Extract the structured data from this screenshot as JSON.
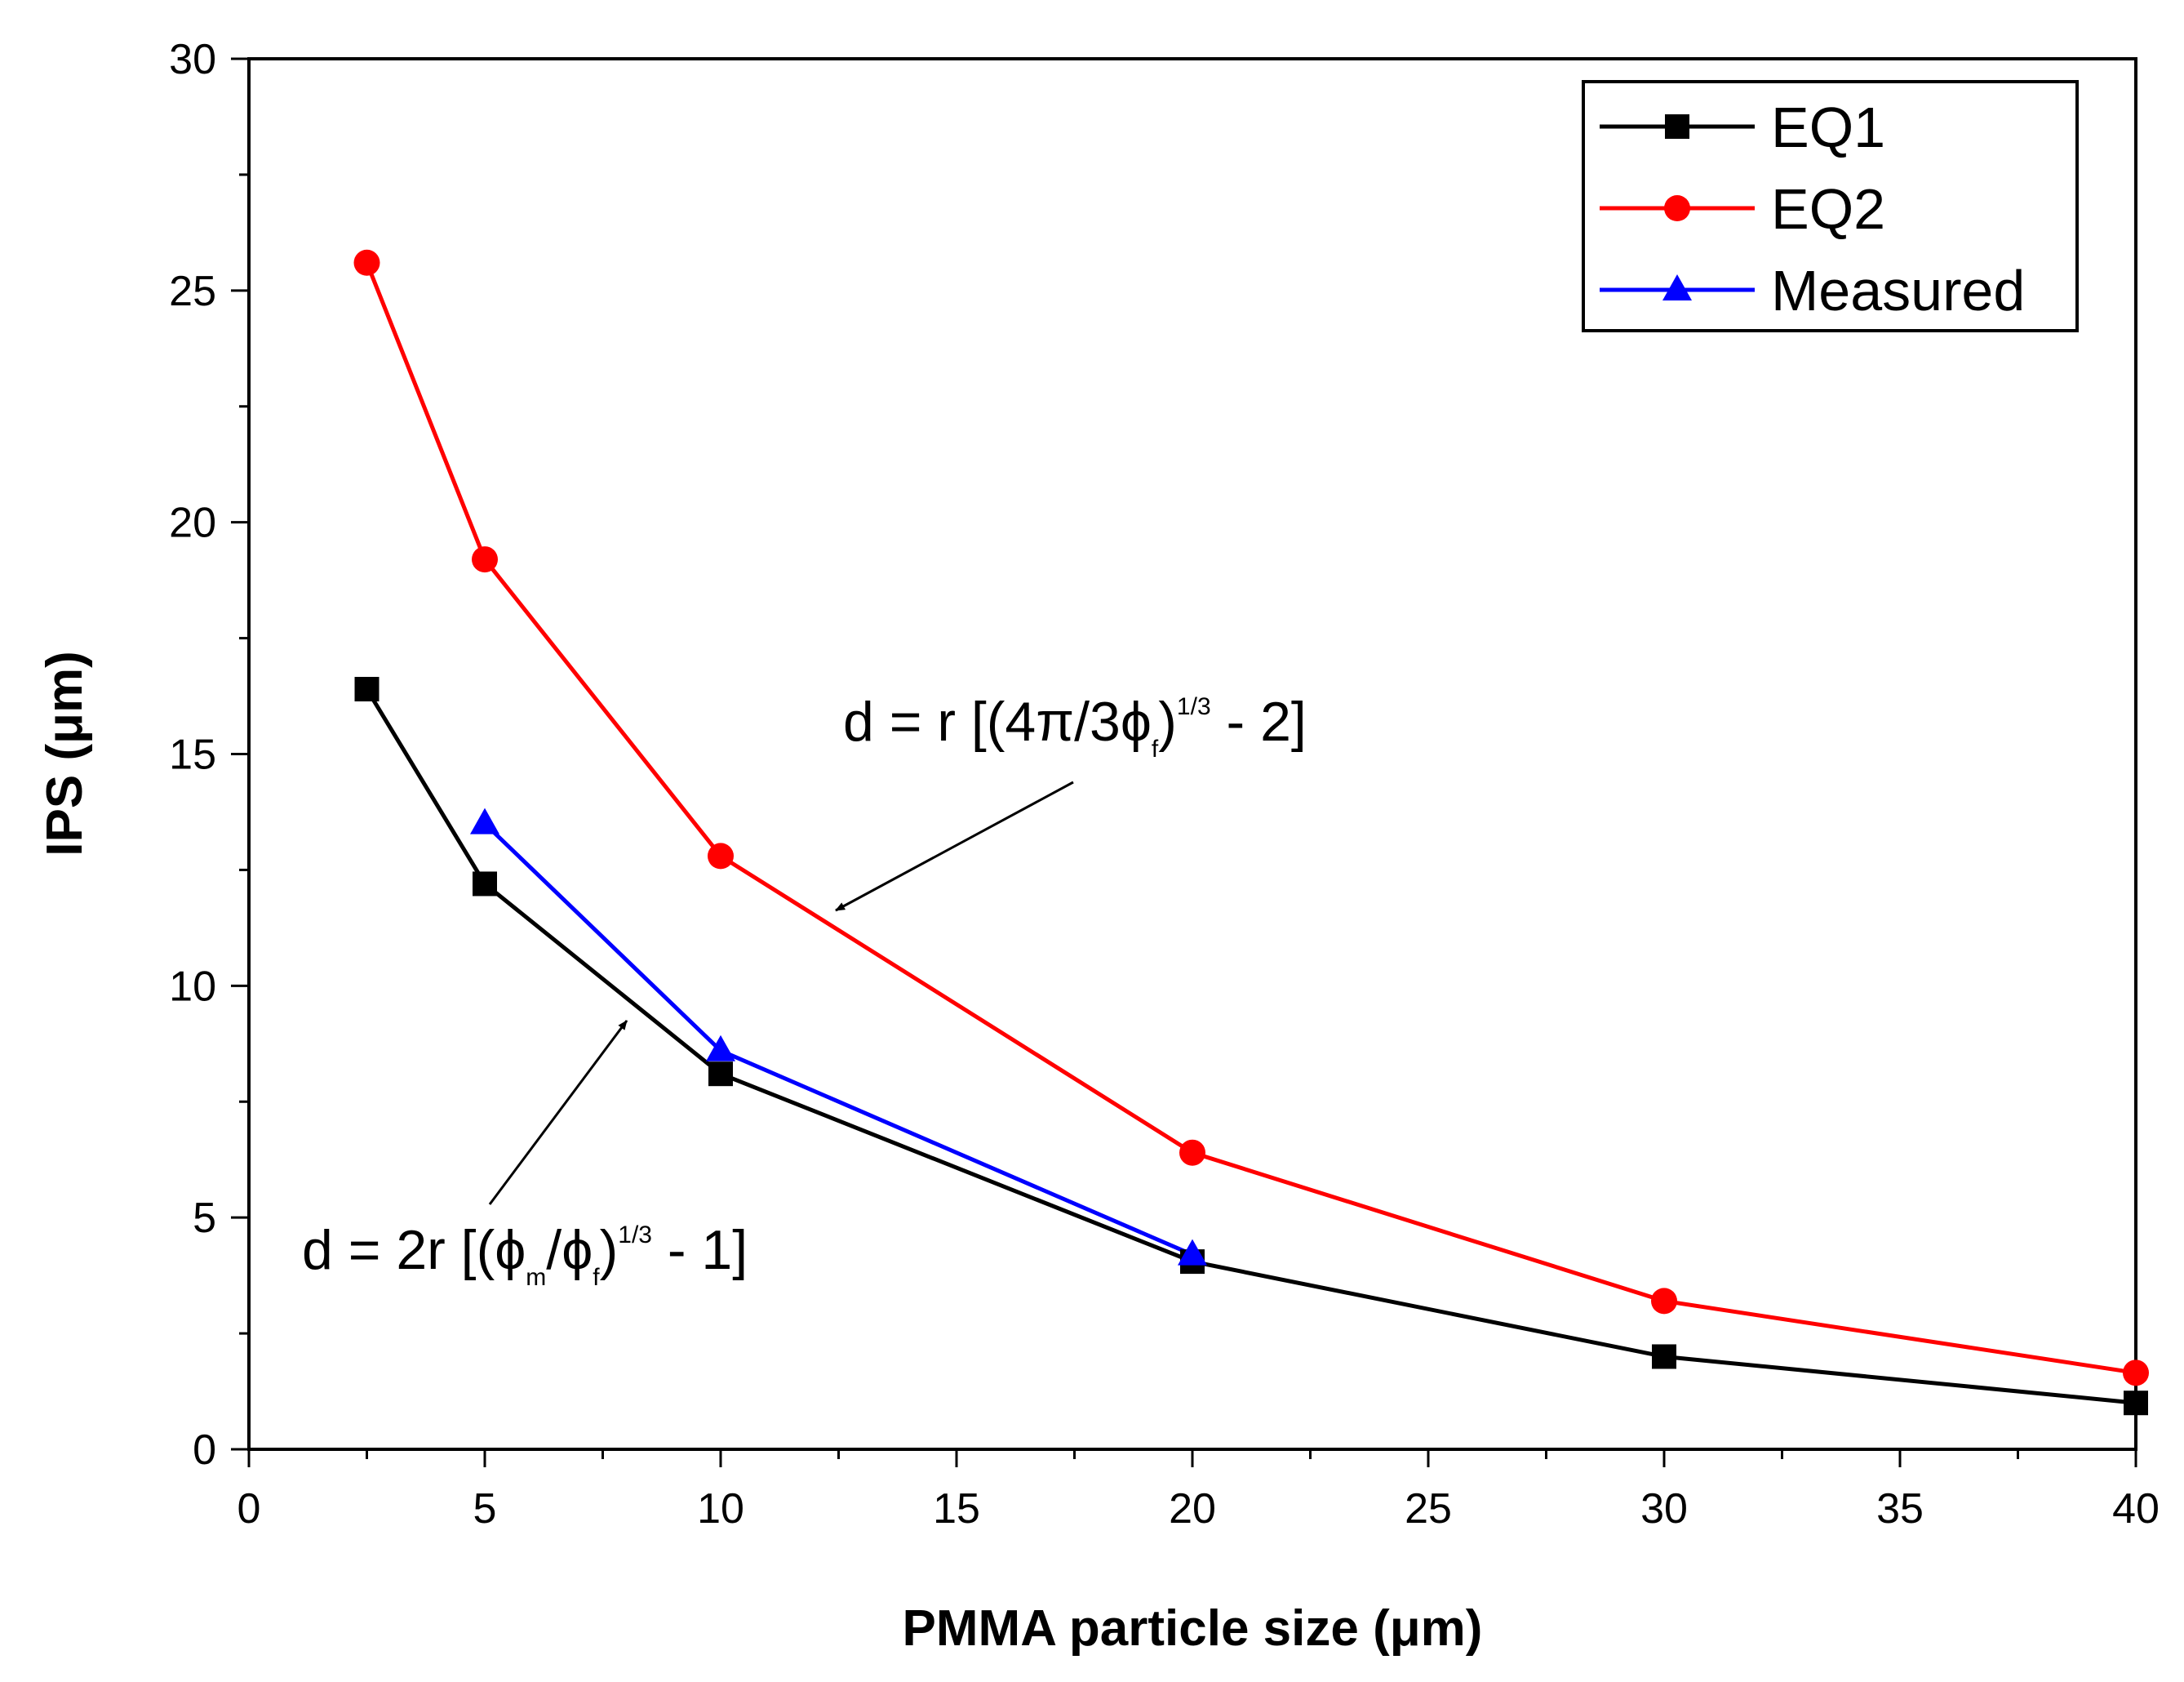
{
  "chart_data": {
    "type": "line",
    "title": "",
    "xlabel": "PMMA particle size (μm)",
    "ylabel": "IPS (μm)",
    "xlim": [
      0,
      40
    ],
    "ylim": [
      0,
      30
    ],
    "xticks": [
      "0",
      "5",
      "10",
      "15",
      "20",
      "25",
      "30",
      "35",
      "40"
    ],
    "yticks": [
      "0",
      "5",
      "10",
      "15",
      "20",
      "25",
      "30"
    ],
    "grid": false,
    "legend_position": "top-right",
    "series": [
      {
        "name": "EQ1",
        "color": "#000000",
        "marker": "square",
        "x": [
          2.5,
          5,
          10,
          20,
          30,
          40
        ],
        "y": [
          16.4,
          12.2,
          8.1,
          4.05,
          2.0,
          1.0
        ]
      },
      {
        "name": "EQ2",
        "color": "#ff0000",
        "marker": "circle",
        "x": [
          2.5,
          5,
          10,
          20,
          30,
          40
        ],
        "y": [
          25.6,
          19.2,
          12.8,
          6.4,
          3.2,
          1.65
        ]
      },
      {
        "name": "Measured",
        "color": "#0000ff",
        "marker": "triangle",
        "x": [
          5,
          10,
          20
        ],
        "y": [
          13.5,
          8.6,
          4.2
        ]
      }
    ],
    "annotations": [
      {
        "id": "eq2-formula",
        "main": "d = r [(4π/3ϕ",
        "sub": "f",
        "paren_close": ")",
        "sup": "1/3",
        "tail": " - 2]",
        "points_to": {
          "x": 12.5,
          "y": 11.6
        }
      },
      {
        "id": "eq1-formula",
        "main": "d = 2r [(ϕ",
        "sub1": "m",
        "mid": "/ϕ",
        "sub2": "f",
        "paren_close": ")",
        "sup": "1/3",
        "tail": " - 1]",
        "points_to": {
          "x": 8.1,
          "y": 9.2
        }
      }
    ]
  }
}
